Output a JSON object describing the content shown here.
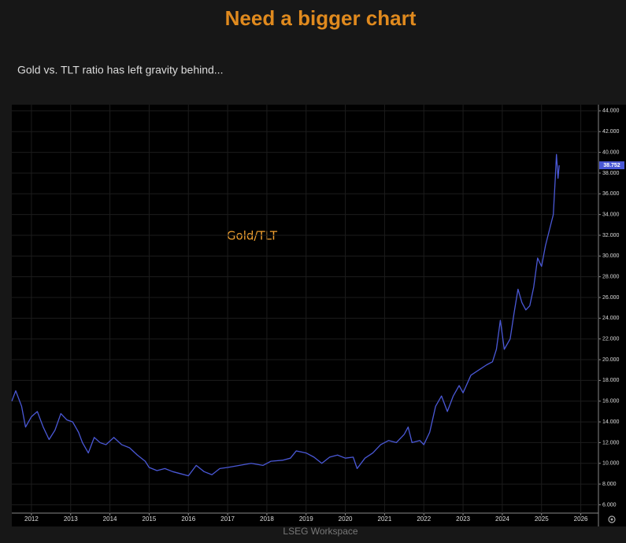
{
  "chart_data": {
    "type": "line",
    "title": "Need a bigger chart",
    "subtitle": "Gold vs. TLT ratio has left gravity behind...",
    "annotation": "Gold/TLT",
    "footer": "LSEG Workspace",
    "price_marker": {
      "value": 38.752,
      "label": "38.752"
    },
    "xlim": [
      2011.5,
      2026.45
    ],
    "xticks": [
      2012,
      2013,
      2014,
      2015,
      2016,
      2017,
      2018,
      2019,
      2020,
      2021,
      2022,
      2023,
      2024,
      2025,
      2026
    ],
    "ylim": [
      5.2,
      44.6
    ],
    "yticks": [
      {
        "value": 6,
        "label": "6.000"
      },
      {
        "value": 8,
        "label": "8.000"
      },
      {
        "value": 10,
        "label": "10.000"
      },
      {
        "value": 12,
        "label": "12.000"
      },
      {
        "value": 14,
        "label": "14.000"
      },
      {
        "value": 16,
        "label": "16.000"
      },
      {
        "value": 18,
        "label": "18.000"
      },
      {
        "value": 20,
        "label": "20.000"
      },
      {
        "value": 22,
        "label": "22.000"
      },
      {
        "value": 24,
        "label": "24.000"
      },
      {
        "value": 26,
        "label": "26.000"
      },
      {
        "value": 28,
        "label": "28.000"
      },
      {
        "value": 30,
        "label": "30.000"
      },
      {
        "value": 32,
        "label": "32.000"
      },
      {
        "value": 34,
        "label": "34.000"
      },
      {
        "value": 36,
        "label": "36.000"
      },
      {
        "value": 38,
        "label": "38.000"
      },
      {
        "value": 40,
        "label": "40.000"
      },
      {
        "value": 42,
        "label": "42.000"
      },
      {
        "value": 44,
        "label": "44.000"
      }
    ],
    "grid": true,
    "series": [
      {
        "name": "Gold/TLT",
        "color": "#4a58d6",
        "x": [
          2011.5,
          2011.6,
          2011.75,
          2011.85,
          2012.0,
          2012.15,
          2012.3,
          2012.45,
          2012.6,
          2012.75,
          2012.9,
          2013.05,
          2013.2,
          2013.3,
          2013.45,
          2013.6,
          2013.75,
          2013.9,
          2014.1,
          2014.3,
          2014.5,
          2014.7,
          2014.9,
          2015.0,
          2015.2,
          2015.4,
          2015.6,
          2015.8,
          2016.0,
          2016.2,
          2016.4,
          2016.6,
          2016.8,
          2017.0,
          2017.3,
          2017.6,
          2017.9,
          2018.1,
          2018.4,
          2018.6,
          2018.75,
          2019.0,
          2019.2,
          2019.4,
          2019.6,
          2019.8,
          2020.0,
          2020.2,
          2020.3,
          2020.5,
          2020.7,
          2020.9,
          2021.1,
          2021.3,
          2021.5,
          2021.6,
          2021.7,
          2021.9,
          2022.0,
          2022.15,
          2022.3,
          2022.45,
          2022.6,
          2022.75,
          2022.9,
          2023.0,
          2023.2,
          2023.4,
          2023.6,
          2023.75,
          2023.85,
          2023.95,
          2024.05,
          2024.2,
          2024.3,
          2024.4,
          2024.5,
          2024.6,
          2024.7,
          2024.8,
          2024.9,
          2025.0,
          2025.1,
          2025.2,
          2025.3,
          2025.35,
          2025.38,
          2025.42,
          2025.45
        ],
        "values": [
          16.0,
          17.0,
          15.5,
          13.5,
          14.5,
          15.0,
          13.5,
          12.3,
          13.2,
          14.8,
          14.2,
          14.0,
          13.0,
          12.0,
          11.0,
          12.5,
          12.0,
          11.8,
          12.5,
          11.8,
          11.5,
          10.8,
          10.2,
          9.6,
          9.3,
          9.5,
          9.2,
          9.0,
          8.8,
          9.8,
          9.2,
          8.9,
          9.5,
          9.6,
          9.8,
          10.0,
          9.8,
          10.2,
          10.3,
          10.5,
          11.2,
          11.0,
          10.6,
          10.0,
          10.6,
          10.8,
          10.5,
          10.6,
          9.5,
          10.5,
          11.0,
          11.8,
          12.2,
          12.0,
          12.8,
          13.5,
          12.0,
          12.2,
          11.8,
          13.0,
          15.5,
          16.5,
          15.0,
          16.5,
          17.5,
          16.8,
          18.5,
          19.0,
          19.5,
          19.8,
          21.0,
          23.8,
          21.0,
          22.0,
          24.5,
          26.8,
          25.5,
          24.8,
          25.2,
          27.0,
          29.8,
          29.0,
          31.0,
          32.5,
          34.0,
          37.5,
          39.8,
          37.5,
          38.75
        ]
      }
    ]
  }
}
